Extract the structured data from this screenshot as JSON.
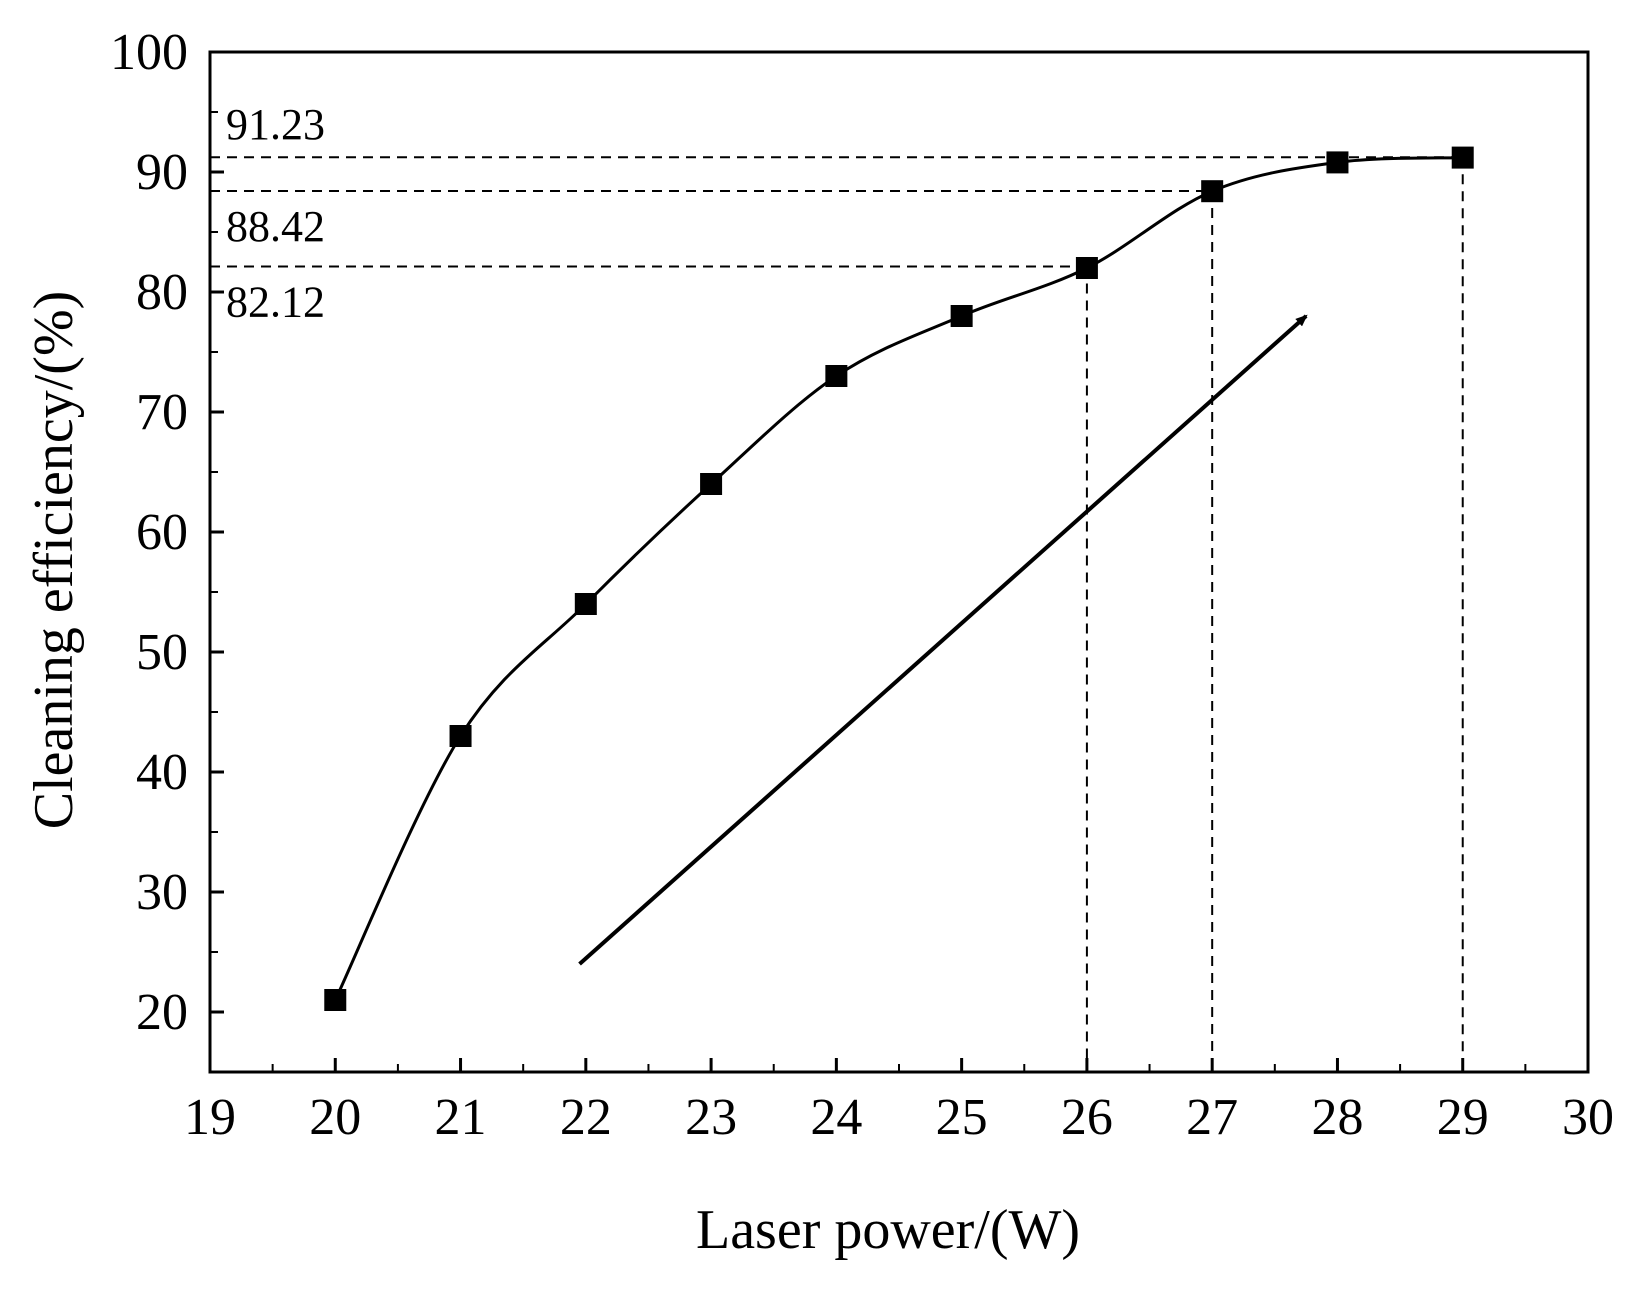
{
  "chart_data": {
    "type": "line",
    "title": "",
    "xlabel": "Laser power/(W)",
    "ylabel": "Cleaning efficiency/(%)",
    "xlim": [
      19,
      30
    ],
    "ylim": [
      15,
      100
    ],
    "x_ticks": [
      19,
      20,
      21,
      22,
      23,
      24,
      25,
      26,
      27,
      28,
      29,
      30
    ],
    "y_ticks": [
      20,
      30,
      40,
      50,
      60,
      70,
      80,
      90,
      100
    ],
    "grid": false,
    "legend": "none",
    "marker": "square",
    "line_style": "smooth",
    "x": [
      20,
      21,
      22,
      23,
      24,
      25,
      26,
      27,
      28,
      29
    ],
    "series": [
      {
        "values": [
          21,
          43,
          54,
          64,
          73,
          78,
          82,
          88.4,
          90.8,
          91.2
        ]
      }
    ],
    "reference_lines": [
      {
        "label": "91.23",
        "x": 29,
        "y": 91.23
      },
      {
        "label": "88.42",
        "x": 27,
        "y": 88.42
      },
      {
        "label": "82.12",
        "x": 26,
        "y": 82.12
      }
    ],
    "trend_arrow": {
      "from": [
        21.95,
        24.0
      ],
      "to": [
        27.75,
        78.0
      ]
    },
    "colors": {
      "line": "#000000",
      "marker": "#000000",
      "axes": "#000000"
    }
  }
}
